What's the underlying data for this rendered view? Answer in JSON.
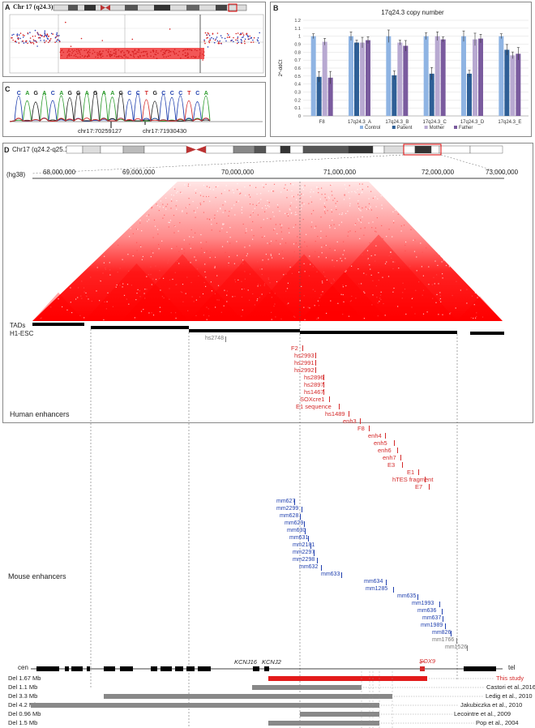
{
  "panelA": {
    "letter": "A",
    "title": "Chr 17 (q24.3)"
  },
  "panelB": {
    "letter": "B",
    "chart_data": {
      "type": "bar",
      "title": "17q24.3 copy number",
      "ylabel": "2^-ddCt",
      "ylim": [
        0,
        1.2
      ],
      "yticks": [
        "0",
        "0.1",
        "0.2",
        "0.3",
        "0.4",
        "0.5",
        "0.6",
        "0.7",
        "0.8",
        "0.9",
        "1",
        "1.1",
        "1.2"
      ],
      "categories": [
        "F8",
        "17q24.3_A",
        "17q24.3_B",
        "17q24.3_C",
        "17q24.3_D",
        "17q24.3_E"
      ],
      "series": [
        {
          "name": "Control",
          "color": "#8fb4e3",
          "values": [
            1.0,
            1.0,
            1.0,
            1.0,
            1.0,
            1.0
          ]
        },
        {
          "name": "Patient",
          "color": "#2e5f96",
          "values": [
            0.49,
            0.92,
            0.51,
            0.53,
            0.53,
            0.83
          ]
        },
        {
          "name": "Mother",
          "color": "#b8a9d1",
          "values": [
            0.93,
            0.92,
            0.92,
            1.0,
            0.96,
            0.76
          ]
        },
        {
          "name": "Father",
          "color": "#7a5b9e",
          "values": [
            0.48,
            0.95,
            0.88,
            0.96,
            0.97,
            0.78
          ]
        }
      ]
    }
  },
  "panelC": {
    "letter": "C",
    "sequence": [
      "C",
      "A",
      "G",
      "A",
      "C",
      "A",
      "G",
      "G",
      "A",
      "G",
      "A",
      "A",
      "G",
      "C",
      "C",
      "T",
      "G",
      "C",
      "C",
      "C",
      "T",
      "C",
      "A"
    ],
    "label1": "chr17:70259127",
    "label2": "chr17:71930430"
  },
  "panelD": {
    "letter": "D",
    "chrom_title": "Chr17 (q24.2-q25.1)",
    "assembly": "(hg38)",
    "axis_ticks": [
      "68,000,000",
      "69,000,000",
      "70,000,000",
      "71,000,000",
      "72,000,000",
      "73,000,000"
    ],
    "tads_label": "TADs",
    "tads_label2": "H1-ESC",
    "human_enhancers_label": "Human enhancers",
    "human_enhancers": [
      "hs2748",
      "F2",
      "hs2993",
      "hs2991",
      "hs2992",
      "hs2896",
      "hs2897",
      "hs1467",
      "SOXcre1",
      "E1 sequence",
      "hs1489",
      "enh3",
      "F8",
      "enh4",
      "enh5",
      "enh6",
      "enh7",
      "E3",
      "E1",
      "hTES fragment",
      "E7"
    ]
  },
  "mouse_enhancers_label": "Mouse enhancers",
  "mouse_enhancers": [
    "mm627",
    "mm2299",
    "mm628",
    "mm629",
    "mm630",
    "mm631",
    "mm2181",
    "mm2297",
    "mm2298",
    "mm632",
    "mm633",
    "mm634",
    "mm1285",
    "mm635",
    "mm1993",
    "mm636",
    "mm637",
    "mm1989",
    "mm826",
    "mm1766",
    "mm1526"
  ],
  "genes": {
    "cen": "cen",
    "tel": "tel",
    "kcnj16": "KCNJ16",
    "kcnj2": "KCNJ2",
    "sox9": "SOX9"
  },
  "deletions": [
    {
      "label": "Del 1.67 Mb",
      "ref": "This study",
      "color": "#e31b1b"
    },
    {
      "label": "Del 1.1 Mb",
      "ref": "Castori et al.,2016",
      "color": "#888888"
    },
    {
      "label": "Del 3.3 Mb",
      "ref": "Ledig et al., 2010",
      "color": "#888888"
    },
    {
      "label": "Del 4.2 Mb",
      "ref": "Jakubiczka et al., 2010",
      "color": "#888888"
    },
    {
      "label": "Del 0.96 Mb",
      "ref": "Lecointre et al., 2009",
      "color": "#888888"
    },
    {
      "label": "Del 1.5 Mb",
      "ref": "Pop et al., 2004",
      "color": "#888888"
    }
  ]
}
